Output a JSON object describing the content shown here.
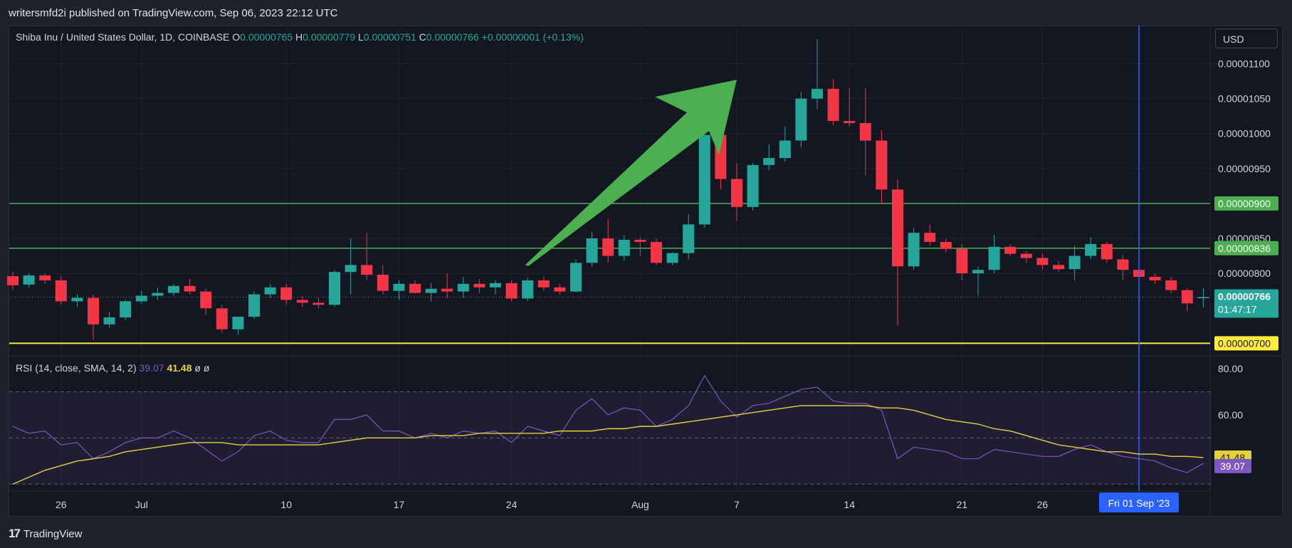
{
  "header": {
    "published": "writersmfd2i published on TradingView.com, Sep 06, 2023 22:12 UTC"
  },
  "legend": {
    "symbol": "Shiba Inu / United States Dollar, 1D, COINBASE",
    "o_label": "O",
    "o": "0.00000765",
    "h_label": "H",
    "h": "0.00000779",
    "l_label": "L",
    "l": "0.00000751",
    "c_label": "C",
    "c": "0.00000766",
    "change": "+0.00000001 (+0.13%)"
  },
  "currency": "USD",
  "rsi_legend": {
    "label": "RSI (14, close, SMA, 14, 2)",
    "rsi": "39.07",
    "sma": "41.48",
    "extra1": "ø",
    "extra2": "ø"
  },
  "footer": {
    "brand": "TradingView",
    "logo_icon": "tradingview-logo-icon"
  },
  "colors": {
    "up": "#26a69a",
    "down": "#f23645",
    "background": "#131722",
    "support_green": "#4caf50",
    "support_yellow": "#ffeb3b",
    "rsi": "#7e57c2",
    "rsi_sma": "#e5d23a",
    "crosshair": "#2962ff",
    "arrow": "#4caf50"
  },
  "chart_data": [
    {
      "type": "candlestick",
      "price_axis": [
        "0.00001100",
        "0.00001050",
        "0.00001000",
        "0.00000950",
        "0.00000850",
        "0.00000800"
      ],
      "time_axis": [
        "26",
        "Jul",
        "10",
        "17",
        "24",
        "Aug",
        "7",
        "14",
        "21",
        "26"
      ],
      "crosshair_time_label": "Fri 01 Sep '23",
      "ylim": [
        6.82e-06,
        1.13e-05
      ],
      "x_start": "2023-06-23",
      "candles": [
        [
          7.96e-06,
          8.02e-06,
          7.76e-06,
          7.83e-06
        ],
        [
          7.84e-06,
          8e-06,
          7.8e-06,
          7.97e-06
        ],
        [
          7.97e-06,
          8e-06,
          7.85e-06,
          7.9e-06
        ],
        [
          7.9e-06,
          7.96e-06,
          7.55e-06,
          7.6e-06
        ],
        [
          7.6e-06,
          7.7e-06,
          7.52e-06,
          7.65e-06
        ],
        [
          7.65e-06,
          7.7e-06,
          7.05e-06,
          7.27e-06
        ],
        [
          7.27e-06,
          7.45e-06,
          7.22e-06,
          7.37e-06
        ],
        [
          7.37e-06,
          7.62e-06,
          7.33e-06,
          7.6e-06
        ],
        [
          7.6e-06,
          7.75e-06,
          7.57e-06,
          7.68e-06
        ],
        [
          7.68e-06,
          7.8e-06,
          7.62e-06,
          7.72e-06
        ],
        [
          7.72e-06,
          7.85e-06,
          7.68e-06,
          7.82e-06
        ],
        [
          7.82e-06,
          7.92e-06,
          7.7e-06,
          7.74e-06
        ],
        [
          7.74e-06,
          7.78e-06,
          7.4e-06,
          7.5e-06
        ],
        [
          7.5e-06,
          7.55e-06,
          7.15e-06,
          7.2e-06
        ],
        [
          7.2e-06,
          7.38e-06,
          7.12e-06,
          7.38e-06
        ],
        [
          7.38e-06,
          7.75e-06,
          7.35e-06,
          7.7e-06
        ],
        [
          7.7e-06,
          7.85e-06,
          7.65e-06,
          7.8e-06
        ],
        [
          7.8e-06,
          7.85e-06,
          7.55e-06,
          7.62e-06
        ],
        [
          7.62e-06,
          7.68e-06,
          7.52e-06,
          7.58e-06
        ],
        [
          7.58e-06,
          7.65e-06,
          7.5e-06,
          7.55e-06
        ],
        [
          7.55e-06,
          8.05e-06,
          7.52e-06,
          8.02e-06
        ],
        [
          8.02e-06,
          8.5e-06,
          7.7e-06,
          8.12e-06
        ],
        [
          8.12e-06,
          8.58e-06,
          7.9e-06,
          7.98e-06
        ],
        [
          7.98e-06,
          8.12e-06,
          7.7e-06,
          7.75e-06
        ],
        [
          7.75e-06,
          7.9e-06,
          7.62e-06,
          7.85e-06
        ],
        [
          7.85e-06,
          7.9e-06,
          7.71e-06,
          7.72e-06
        ],
        [
          7.72e-06,
          7.86e-06,
          7.6e-06,
          7.78e-06
        ],
        [
          7.78e-06,
          8e-06,
          7.65e-06,
          7.74e-06
        ],
        [
          7.74e-06,
          7.95e-06,
          7.65e-06,
          7.85e-06
        ],
        [
          7.85e-06,
          7.92e-06,
          7.72e-06,
          7.8e-06
        ],
        [
          7.8e-06,
          7.9e-06,
          7.7e-06,
          7.86e-06
        ],
        [
          7.86e-06,
          7.9e-06,
          7.6e-06,
          7.64e-06
        ],
        [
          7.64e-06,
          7.94e-06,
          7.6e-06,
          7.9e-06
        ],
        [
          7.9e-06,
          7.95e-06,
          7.75e-06,
          7.8e-06
        ],
        [
          7.8e-06,
          7.85e-06,
          7.7e-06,
          7.74e-06
        ],
        [
          7.74e-06,
          8.2e-06,
          7.73e-06,
          8.15e-06
        ],
        [
          8.15e-06,
          8.6e-06,
          8.1e-06,
          8.5e-06
        ],
        [
          8.5e-06,
          8.78e-06,
          8.15e-06,
          8.25e-06
        ],
        [
          8.25e-06,
          8.55e-06,
          8.18e-06,
          8.48e-06
        ],
        [
          8.48e-06,
          8.52e-06,
          8.25e-06,
          8.45e-06
        ],
        [
          8.45e-06,
          8.5e-06,
          8.12e-06,
          8.15e-06
        ],
        [
          8.15e-06,
          8.3e-06,
          8.12e-06,
          8.29e-06
        ],
        [
          8.29e-06,
          8.85e-06,
          8.2e-06,
          8.7e-06
        ],
        [
          8.7e-06,
          1.045e-05,
          8.65e-06,
          9.98e-06
        ],
        [
          9.98e-06,
          1.01e-05,
          9.2e-06,
          9.35e-06
        ],
        [
          9.35e-06,
          9.58e-06,
          8.75e-06,
          8.95e-06
        ],
        [
          8.95e-06,
          9.58e-06,
          8.9e-06,
          9.55e-06
        ],
        [
          9.55e-06,
          9.85e-06,
          9.48e-06,
          9.65e-06
        ],
        [
          9.65e-06,
          1.01e-05,
          9.6e-06,
          9.9e-06
        ],
        [
          9.9e-06,
          1.06e-05,
          9.8e-06,
          1.05e-05
        ],
        [
          1.05e-05,
          1.135e-05,
          1.035e-05,
          1.064e-05
        ],
        [
          1.064e-05,
          1.078e-05,
          1.012e-05,
          1.018e-05
        ],
        [
          1.018e-05,
          1.065e-05,
          1.01e-05,
          1.015e-05
        ],
        [
          1.015e-05,
          1.065e-05,
          9.4e-06,
          9.9e-06
        ],
        [
          9.9e-06,
          1.005e-05,
          9e-06,
          9.2e-06
        ],
        [
          9.2e-06,
          9.35e-06,
          7.25e-06,
          8.1e-06
        ],
        [
          8.1e-06,
          8.65e-06,
          8.05e-06,
          8.58e-06
        ],
        [
          8.58e-06,
          8.7e-06,
          8.4e-06,
          8.45e-06
        ],
        [
          8.45e-06,
          8.5e-06,
          8.3e-06,
          8.35e-06
        ],
        [
          8.35e-06,
          8.42e-06,
          7.9e-06,
          8e-06
        ],
        [
          8e-06,
          8.1e-06,
          7.68e-06,
          8.05e-06
        ],
        [
          8.05e-06,
          8.55e-06,
          8e-06,
          8.38e-06
        ],
        [
          8.38e-06,
          8.42e-06,
          8.25e-06,
          8.28e-06
        ],
        [
          8.28e-06,
          8.32e-06,
          8.15e-06,
          8.22e-06
        ],
        [
          8.22e-06,
          8.28e-06,
          8.05e-06,
          8.12e-06
        ],
        [
          8.12e-06,
          8.18e-06,
          8.02e-06,
          8.06e-06
        ],
        [
          8.06e-06,
          8.4e-06,
          7.9e-06,
          8.25e-06
        ],
        [
          8.25e-06,
          8.52e-06,
          8.2e-06,
          8.42e-06
        ],
        [
          8.42e-06,
          8.45e-06,
          8.15e-06,
          8.2e-06
        ],
        [
          8.2e-06,
          8.26e-06,
          7.9e-06,
          8.05e-06
        ],
        [
          8.05e-06,
          8.1e-06,
          7.92e-06,
          7.95e-06
        ],
        [
          7.95e-06,
          8e-06,
          7.85e-06,
          7.9e-06
        ],
        [
          7.9e-06,
          7.95e-06,
          7.72e-06,
          7.76e-06
        ],
        [
          7.76e-06,
          7.79e-06,
          7.46e-06,
          7.57e-06
        ],
        [
          7.65e-06,
          7.79e-06,
          7.51e-06,
          7.66e-06
        ]
      ],
      "horizontal_lines": [
        {
          "price": 9e-06,
          "label": "0.00000900"
        },
        {
          "price": 8.36e-06,
          "label": "0.00000836"
        },
        {
          "price": 7e-06,
          "label": "0.00000700"
        }
      ],
      "last_price_label": "0.00000766",
      "countdown_label": "01:47:17"
    },
    {
      "type": "line",
      "rsi_axis": [
        "80.00",
        "60.00"
      ],
      "ylim": [
        27,
        84
      ],
      "levels": [
        70,
        50,
        30
      ],
      "rsi_label": "39.07",
      "sma_label": "41.48",
      "series": [
        {
          "values": [
            55,
            52,
            53,
            47,
            48,
            41,
            44,
            48,
            50,
            50,
            53,
            50,
            45,
            40,
            44,
            51,
            53,
            49,
            48,
            48,
            58,
            58,
            60,
            53,
            53,
            50,
            52,
            50,
            53,
            52,
            53,
            48,
            55,
            53,
            51,
            62,
            67,
            60,
            63,
            62,
            55,
            58,
            64,
            77,
            66,
            59,
            64,
            65,
            68,
            71,
            72,
            66,
            65,
            65,
            62,
            41,
            46,
            45,
            44,
            41,
            41,
            45,
            44,
            43,
            42,
            42,
            45,
            47,
            44,
            42,
            41,
            40,
            37,
            35,
            39
          ]
        },
        {
          "values": [
            30,
            33,
            36,
            38,
            40,
            41,
            42,
            44,
            45,
            46,
            47,
            48,
            48,
            48,
            47,
            47,
            47,
            47,
            47,
            47,
            48,
            49,
            50,
            50,
            50,
            50,
            51,
            51,
            51,
            52,
            52,
            52,
            52,
            52,
            53,
            53,
            53,
            54,
            54,
            55,
            55,
            56,
            57,
            58,
            59,
            60,
            61,
            62,
            63,
            64,
            64,
            64,
            64,
            64,
            63,
            63,
            62,
            60,
            58,
            57,
            56,
            54,
            53,
            51,
            49,
            47,
            46,
            45,
            44,
            44,
            43,
            43,
            42,
            42,
            41.5
          ]
        }
      ]
    }
  ]
}
